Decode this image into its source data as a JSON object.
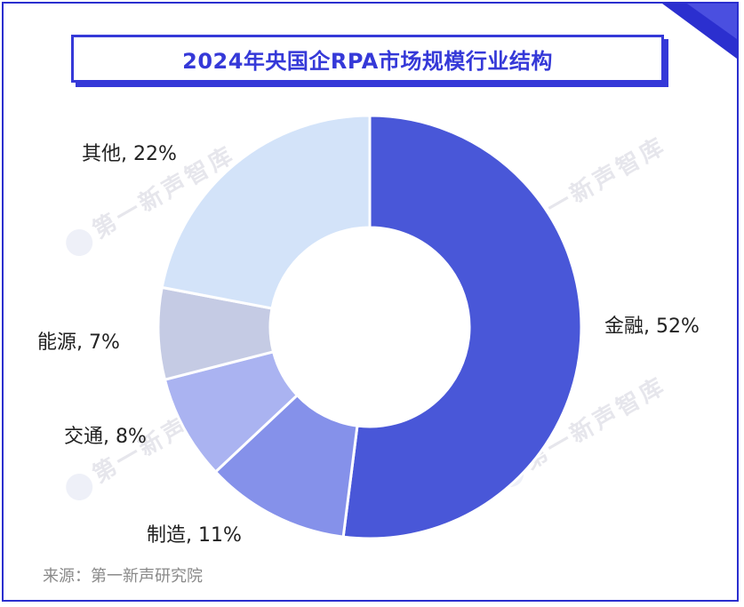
{
  "title": "2024年央国企RPA市场规模行业结构",
  "source": "来源：第一新声研究院",
  "watermark": "第一新声智库",
  "chart_data": {
    "type": "pie",
    "style": "donut",
    "title": "2024年央国企RPA市场规模行业结构",
    "categories": [
      "金融",
      "制造",
      "交通",
      "能源",
      "其他"
    ],
    "values": [
      52,
      11,
      8,
      7,
      22
    ],
    "unit": "%",
    "labels": [
      "金融, 52%",
      "制造, 11%",
      "交通, 8%",
      "能源, 7%",
      "其他, 22%"
    ],
    "colors": [
      "#4957d8",
      "#8591ea",
      "#aab3f1",
      "#c5cbe4",
      "#d3e3f9"
    ]
  }
}
